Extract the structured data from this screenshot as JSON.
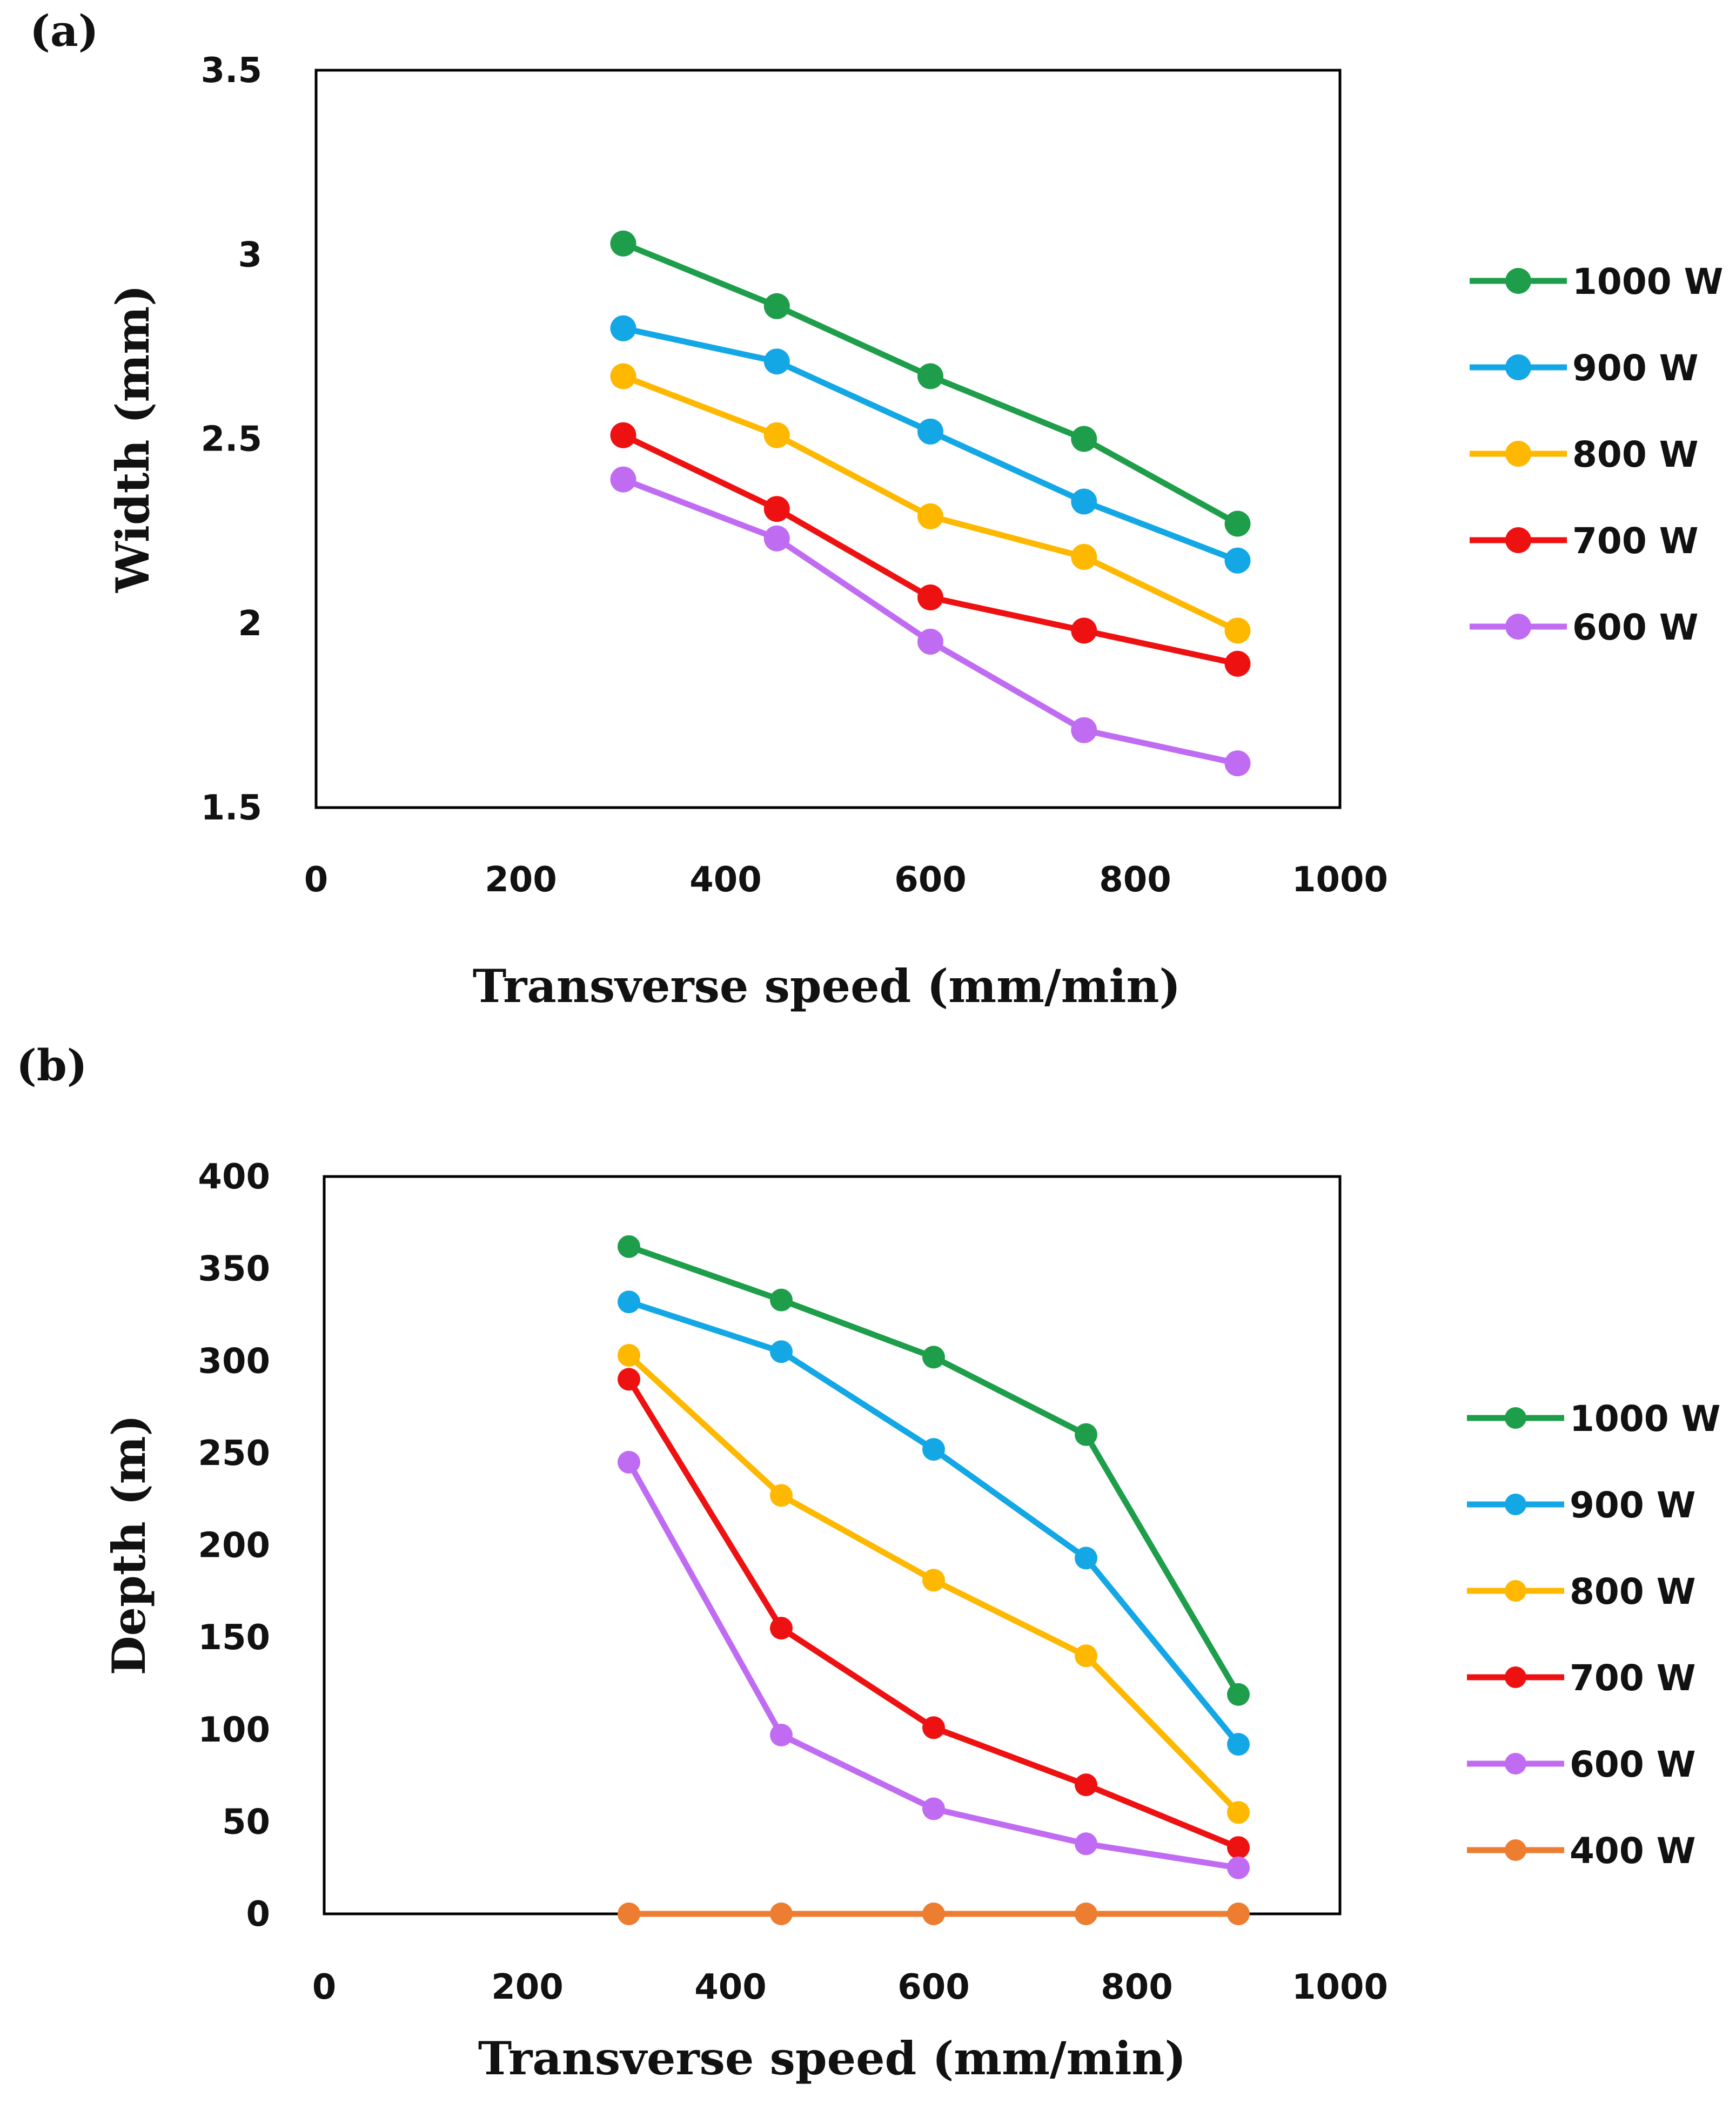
{
  "chart_data": [
    {
      "type": "line",
      "panel_label": "(a)",
      "xlabel": "Transverse speed (mm/min)",
      "ylabel": "Width (mm)",
      "xlim": [
        0,
        1000
      ],
      "ylim": [
        1.5,
        3.5
      ],
      "x_ticks": [
        "0",
        "200",
        "400",
        "600",
        "800",
        "1000"
      ],
      "y_ticks": [
        "1.5",
        "2",
        "2.5",
        "3",
        "3.5"
      ],
      "y_tick_values": [
        1.5,
        2,
        2.5,
        3,
        3.5
      ],
      "x": [
        300,
        450,
        600,
        750,
        900
      ],
      "legend_position": "right",
      "series": [
        {
          "name": "1000 W",
          "color": "#1e9e4a",
          "values": [
            3.03,
            2.86,
            2.67,
            2.5,
            2.27
          ]
        },
        {
          "name": "900 W",
          "color": "#14a7e6",
          "values": [
            2.8,
            2.71,
            2.52,
            2.33,
            2.17
          ]
        },
        {
          "name": "800 W",
          "color": "#ffb800",
          "values": [
            2.67,
            2.51,
            2.29,
            2.18,
            1.98
          ]
        },
        {
          "name": "700 W",
          "color": "#ee1111",
          "values": [
            2.51,
            2.31,
            2.07,
            1.98,
            1.89
          ]
        },
        {
          "name": "600 W",
          "color": "#c06cf2",
          "values": [
            2.39,
            2.23,
            1.95,
            1.71,
            1.62
          ]
        }
      ]
    },
    {
      "type": "line",
      "panel_label": "(b)",
      "xlabel": "Transverse speed (mm/min)",
      "ylabel": "Depth (m)",
      "xlim": [
        0,
        1000
      ],
      "ylim": [
        0,
        400
      ],
      "x_ticks": [
        "0",
        "200",
        "400",
        "600",
        "800",
        "1000"
      ],
      "y_ticks": [
        "0",
        "50",
        "100",
        "150",
        "200",
        "250",
        "300",
        "350",
        "400"
      ],
      "y_tick_values": [
        0,
        50,
        100,
        150,
        200,
        250,
        300,
        350,
        400
      ],
      "x": [
        300,
        450,
        600,
        750,
        900
      ],
      "legend_position": "right",
      "series": [
        {
          "name": "1000 W",
          "color": "#1e9e4a",
          "values": [
            362,
            333,
            302,
            260,
            119
          ]
        },
        {
          "name": "900 W",
          "color": "#14a7e6",
          "values": [
            332,
            305,
            252,
            193,
            92
          ]
        },
        {
          "name": "800 W",
          "color": "#ffb800",
          "values": [
            303,
            227,
            181,
            140,
            55
          ]
        },
        {
          "name": "700 W",
          "color": "#ee1111",
          "values": [
            290,
            155,
            101,
            70,
            36
          ]
        },
        {
          "name": "600 W",
          "color": "#c06cf2",
          "values": [
            245,
            97,
            57,
            38,
            25
          ]
        },
        {
          "name": "400 W",
          "color": "#ed7d31",
          "values": [
            0,
            0,
            0,
            0,
            0
          ]
        }
      ]
    }
  ]
}
